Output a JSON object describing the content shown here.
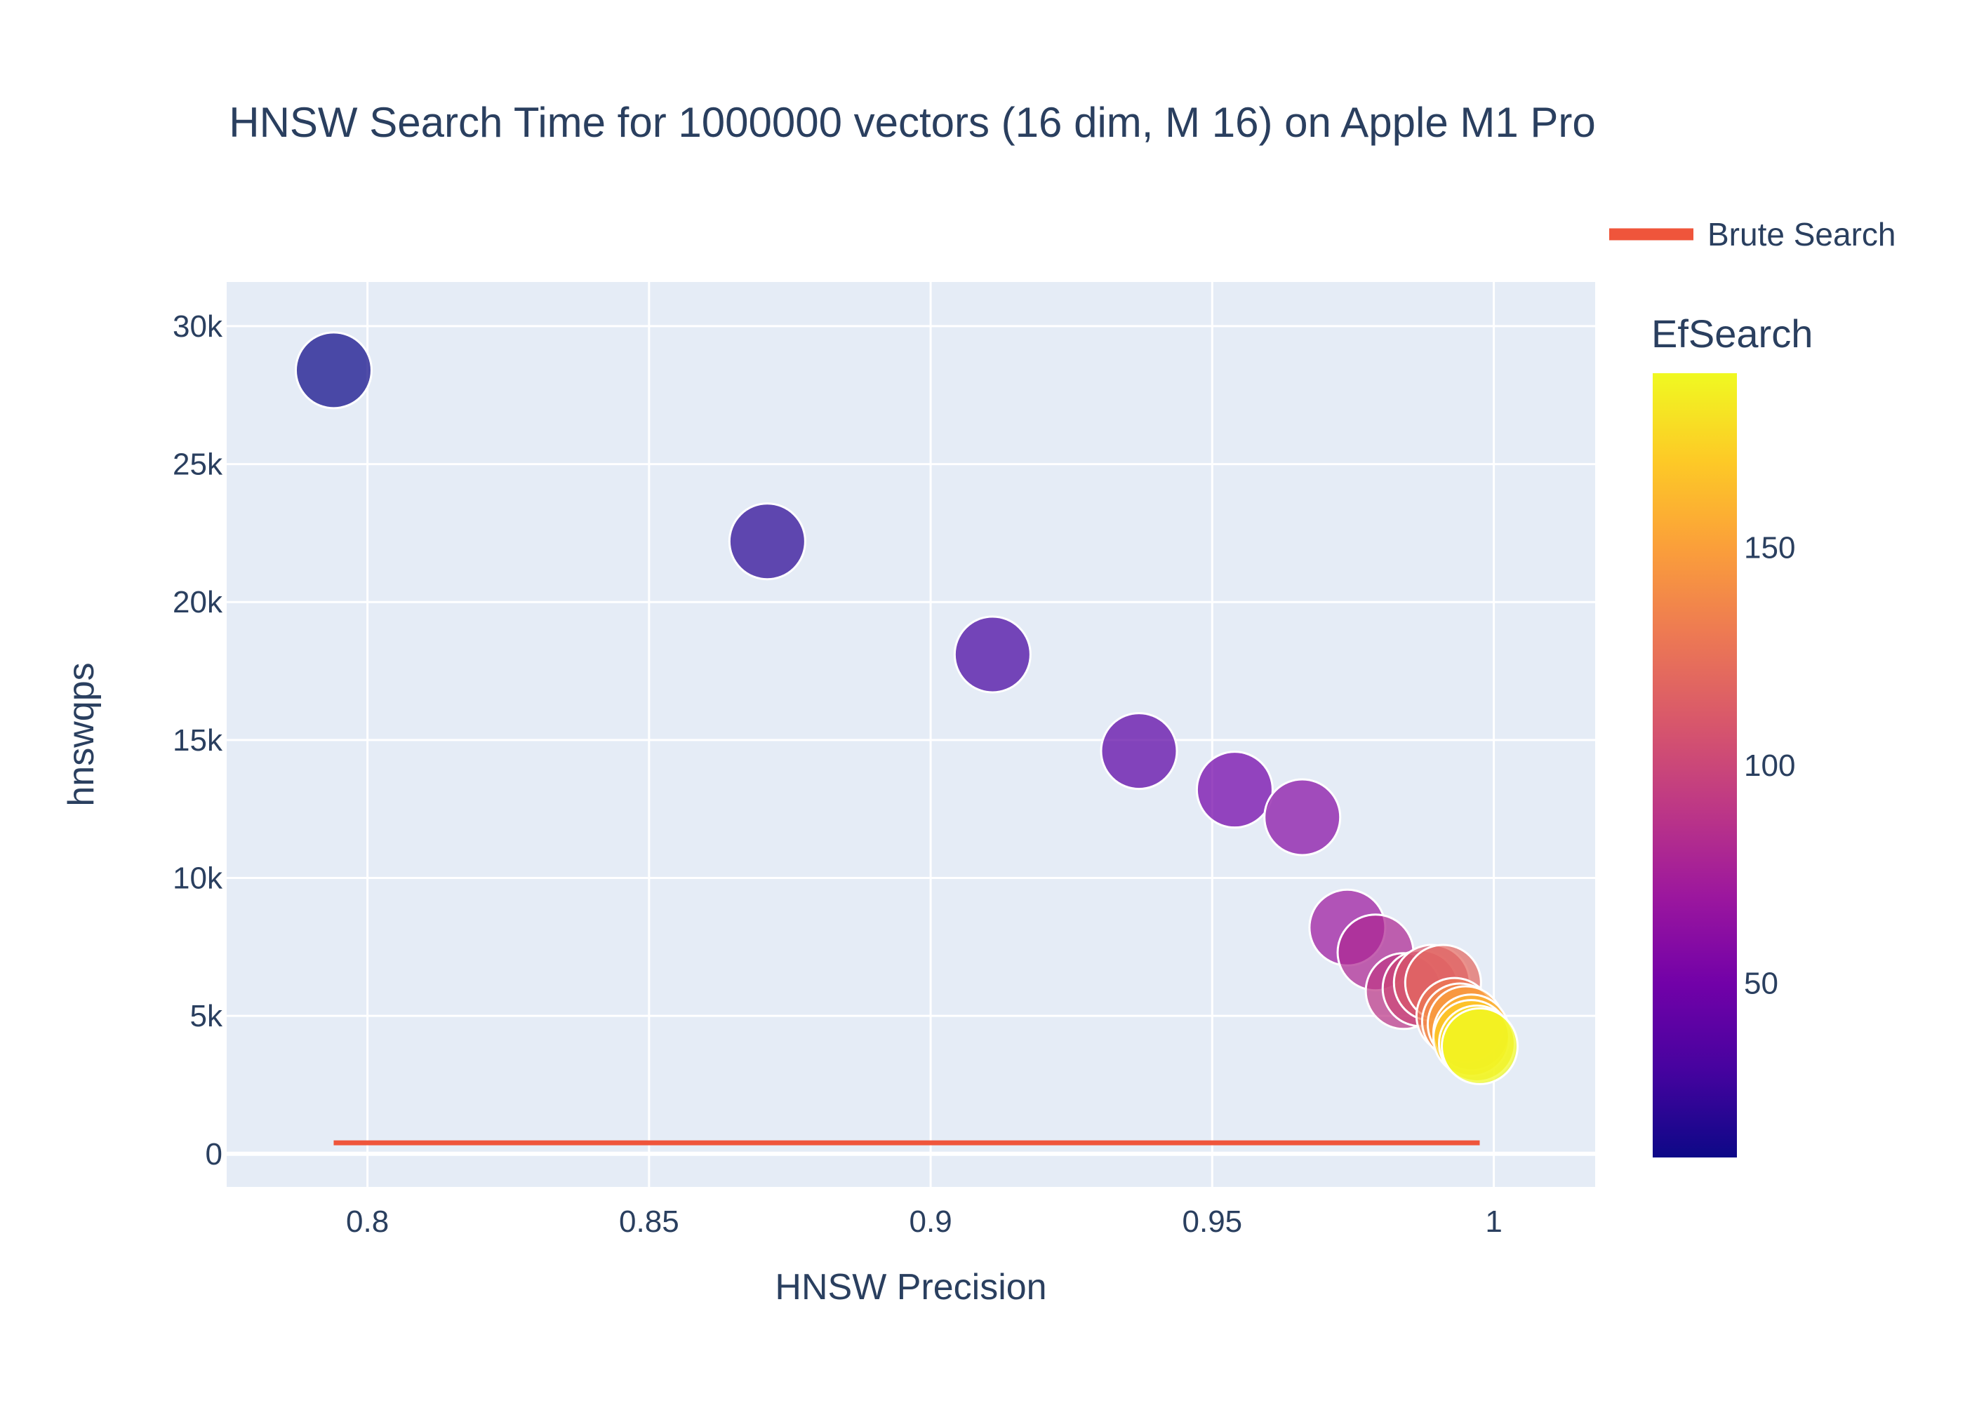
{
  "chart_data": {
    "type": "scatter",
    "title": "HNSW Search Time for 1000000 vectors (16 dim, M 16) on Apple M1 Pro",
    "xlabel": "HNSW Precision",
    "ylabel": "hnswqps",
    "xlim": [
      0.775,
      1.018
    ],
    "ylim": [
      -1200,
      31600
    ],
    "x_ticks": [
      0.8,
      0.85,
      0.9,
      0.95,
      1
    ],
    "x_tick_labels": [
      "0.8",
      "0.85",
      "0.9",
      "0.95",
      "1"
    ],
    "y_ticks": [
      0,
      5000,
      10000,
      15000,
      20000,
      25000,
      30000
    ],
    "y_tick_labels": [
      "0",
      "5k",
      "10k",
      "15k",
      "20k",
      "25k",
      "30k"
    ],
    "grid": true,
    "colorbar": {
      "title": "EfSearch",
      "range": [
        10,
        190
      ],
      "ticks": [
        50,
        100,
        150
      ],
      "tick_labels": [
        "50",
        "100",
        "150"
      ],
      "colorscale": [
        "#0d0887",
        "#46039f",
        "#7201a8",
        "#9c179e",
        "#bd3786",
        "#d8576b",
        "#ed7953",
        "#fb9f3a",
        "#fdca26",
        "#f0f921"
      ]
    },
    "points": [
      {
        "x": 0.794,
        "y": 28400,
        "ef": 10
      },
      {
        "x": 0.871,
        "y": 22200,
        "ef": 20
      },
      {
        "x": 0.911,
        "y": 18100,
        "ef": 30
      },
      {
        "x": 0.937,
        "y": 14600,
        "ef": 40
      },
      {
        "x": 0.954,
        "y": 13200,
        "ef": 50
      },
      {
        "x": 0.966,
        "y": 12200,
        "ef": 60
      },
      {
        "x": 0.974,
        "y": 8200,
        "ef": 70
      },
      {
        "x": 0.979,
        "y": 7300,
        "ef": 80
      },
      {
        "x": 0.984,
        "y": 5900,
        "ef": 90
      },
      {
        "x": 0.987,
        "y": 6000,
        "ef": 100
      },
      {
        "x": 0.989,
        "y": 6200,
        "ef": 110
      },
      {
        "x": 0.991,
        "y": 6200,
        "ef": 120
      },
      {
        "x": 0.993,
        "y": 5000,
        "ef": 130
      },
      {
        "x": 0.994,
        "y": 4800,
        "ef": 140
      },
      {
        "x": 0.995,
        "y": 4700,
        "ef": 150
      },
      {
        "x": 0.996,
        "y": 4400,
        "ef": 160
      },
      {
        "x": 0.996,
        "y": 4200,
        "ef": 170
      },
      {
        "x": 0.997,
        "y": 4000,
        "ef": 180
      },
      {
        "x": 0.9975,
        "y": 3900,
        "ef": 190
      }
    ],
    "line_series": {
      "name": "Brute Search",
      "color": "#ef553b",
      "x": [
        0.794,
        0.9975
      ],
      "y": [
        400,
        400
      ]
    },
    "legend_position": "top-right"
  }
}
